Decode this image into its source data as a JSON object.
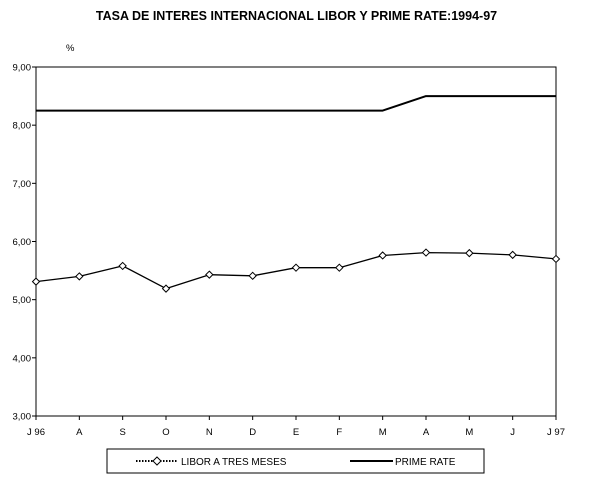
{
  "chart_data": {
    "type": "line",
    "title": "TASA DE INTERES INTERNACIONAL LIBOR Y PRIME RATE:1994-97",
    "ylabel": "%",
    "xlabel": "",
    "ylim": [
      3,
      9
    ],
    "yticks": [
      "3,00",
      "4,00",
      "5,00",
      "6,00",
      "7,00",
      "8,00",
      "9,00"
    ],
    "categories": [
      "J 96",
      "A",
      "S",
      "O",
      "N",
      "D",
      "E",
      "F",
      "M",
      "A",
      "M",
      "J",
      "J 97"
    ],
    "series": [
      {
        "name": "LIBOR A TRES MESES",
        "values": [
          5.31,
          5.4,
          5.58,
          5.19,
          5.43,
          5.41,
          5.55,
          5.55,
          5.76,
          5.81,
          5.8,
          5.77,
          5.7
        ],
        "color": "#000000",
        "marker": "diamond"
      },
      {
        "name": "PRIME RATE",
        "values": [
          8.25,
          8.25,
          8.25,
          8.25,
          8.25,
          8.25,
          8.25,
          8.25,
          8.25,
          8.5,
          8.5,
          8.5,
          8.5
        ],
        "color": "#000000",
        "marker": "none"
      }
    ],
    "grid": false,
    "legend_position": "bottom"
  }
}
